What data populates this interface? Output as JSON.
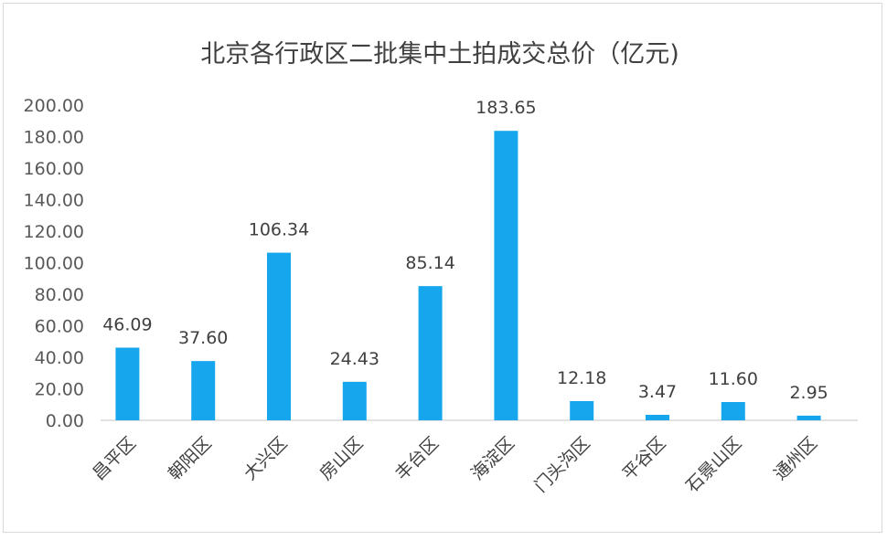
{
  "chart_data": {
    "type": "bar",
    "title": "北京各行政区二批集中土拍成交总价（亿元)",
    "categories": [
      "昌平区",
      "朝阳区",
      "大兴区",
      "房山区",
      "丰台区",
      "海淀区",
      "门头沟区",
      "平谷区",
      "石景山区",
      "通州区"
    ],
    "values": [
      46.09,
      37.6,
      106.34,
      24.43,
      85.14,
      183.65,
      12.18,
      3.47,
      11.6,
      2.95
    ],
    "data_labels": [
      "46.09",
      "37.60",
      "106.34",
      "24.43",
      "85.14",
      "183.65",
      "12.18",
      "3.47",
      "11.60",
      "2.95"
    ],
    "yticks": [
      "0.00",
      "20.00",
      "40.00",
      "60.00",
      "80.00",
      "100.00",
      "120.00",
      "140.00",
      "160.00",
      "180.00",
      "200.00"
    ],
    "ylim": [
      0,
      200
    ],
    "xlabel": "",
    "ylabel": "",
    "grid": false,
    "legend": "none",
    "bar_color": "#16a6ee",
    "axis_color": "#d9d9d9"
  }
}
